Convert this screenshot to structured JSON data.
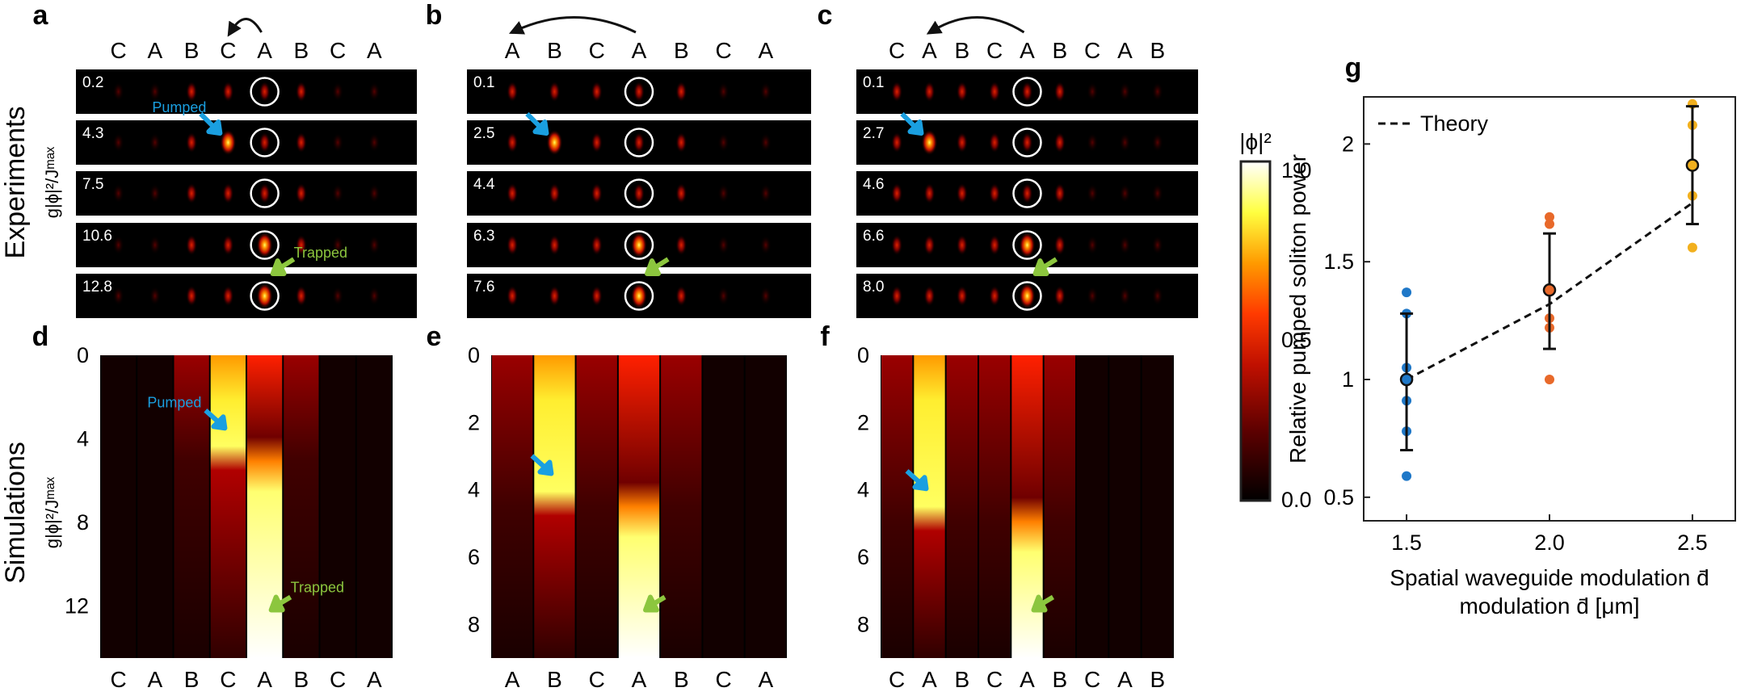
{
  "panels": {
    "a": {
      "letter": "a",
      "sites": [
        "C",
        "A",
        "B",
        "C",
        "A",
        "B",
        "C",
        "A"
      ],
      "frames": [
        "0.2",
        "4.3",
        "7.5",
        "10.6",
        "12.8"
      ]
    },
    "b": {
      "letter": "b",
      "sites": [
        "A",
        "B",
        "C",
        "A",
        "B",
        "C",
        "A"
      ],
      "frames": [
        "0.1",
        "2.5",
        "4.4",
        "6.3",
        "7.6"
      ]
    },
    "c": {
      "letter": "c",
      "sites": [
        "C",
        "A",
        "B",
        "C",
        "A",
        "B",
        "C",
        "A",
        "B"
      ],
      "frames": [
        "0.1",
        "2.7",
        "4.6",
        "6.6",
        "8.0"
      ]
    },
    "d": {
      "letter": "d",
      "sites": [
        "C",
        "A",
        "B",
        "C",
        "A",
        "B",
        "C",
        "A"
      ],
      "yticks": [
        "0",
        "4",
        "8",
        "12"
      ]
    },
    "e": {
      "letter": "e",
      "sites": [
        "A",
        "B",
        "C",
        "A",
        "B",
        "C",
        "A"
      ],
      "yticks": [
        "0",
        "2",
        "4",
        "6",
        "8"
      ]
    },
    "f": {
      "letter": "f",
      "sites": [
        "C",
        "A",
        "B",
        "C",
        "A",
        "B",
        "C",
        "A",
        "B"
      ],
      "yticks": [
        "0",
        "2",
        "4",
        "6",
        "8"
      ]
    },
    "g": {
      "letter": "g"
    }
  },
  "labels": {
    "experiments": "Experiments",
    "simulations": "Simulations",
    "ylabel_left": "g|ϕ|²/Jᵐᵃˣ",
    "pumped": "Pumped",
    "trapped": "Trapped"
  },
  "colorbar": {
    "title": "|ϕ|²",
    "ticks": [
      "1.0",
      "0.5",
      "0.0"
    ],
    "colormap": [
      "#000000",
      "#5a0000",
      "#c01000",
      "#ff3a00",
      "#ff9a00",
      "#ffff40",
      "#ffffff"
    ]
  },
  "colors": {
    "pumped_arrow": "#1a9fe0",
    "trapped_arrow": "#8cc63e",
    "blue": "#1f78c8",
    "orange": "#e8692a",
    "gold": "#f2b01e"
  },
  "chart_data": {
    "type": "scatter",
    "title": "",
    "xlabel": "Spatial waveguide modulation d̄ [μm]",
    "ylabel": "Relative pumped soliton power",
    "xlim": [
      1.35,
      2.65
    ],
    "ylim": [
      0.4,
      2.2
    ],
    "xticks": [
      "1.5",
      "2.0",
      "2.5"
    ],
    "yticks": [
      "0.5",
      "1",
      "1.5",
      "2"
    ],
    "legend": {
      "entries": [
        "Theory"
      ],
      "position": "top-left"
    },
    "theory": {
      "name": "Theory",
      "x": [
        1.5,
        2.0,
        2.5
      ],
      "y": [
        1.0,
        1.32,
        1.75
      ]
    },
    "series": [
      {
        "x": 1.5,
        "points": [
          0.59,
          0.78,
          0.91,
          1.05,
          1.28,
          1.37
        ],
        "mean": 1.0,
        "err_low": 0.7,
        "err_high": 1.28,
        "color": "#1f78c8"
      },
      {
        "x": 2.0,
        "points": [
          1.0,
          1.22,
          1.26,
          1.38,
          1.66,
          1.69
        ],
        "mean": 1.38,
        "err_low": 1.13,
        "err_high": 1.62,
        "color": "#e8692a"
      },
      {
        "x": 2.5,
        "points": [
          1.56,
          1.78,
          1.91,
          2.08,
          2.17
        ],
        "mean": 1.91,
        "err_low": 1.66,
        "err_high": 2.16,
        "color": "#f2b01e"
      }
    ]
  }
}
